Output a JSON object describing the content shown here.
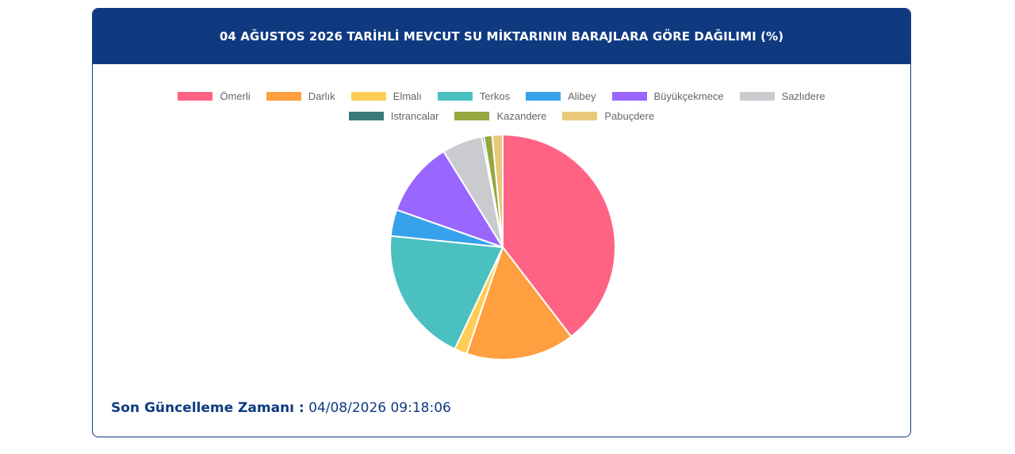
{
  "header": {
    "title": "04 AĞUSTOS 2026 TARİHLİ MEVCUT SU MİKTARININ BARAJLARA GÖRE DAĞILIMI (%)"
  },
  "footer": {
    "label": "Son Güncelleme Zamanı :",
    "value": "04/08/2026 09:18:06"
  },
  "chart_data": {
    "type": "pie",
    "title": "04 AĞUSTOS 2026 TARİHLİ MEVCUT SU MİKTARININ BARAJLARA GÖRE DAĞILIMI (%)",
    "legend_position": "top",
    "categories": [
      "Ömerli",
      "Darlık",
      "Elmalı",
      "Terkos",
      "Alibey",
      "Büyükçekmece",
      "Sazlıdere",
      "Istrancalar",
      "Kazandere",
      "Pabuçdere"
    ],
    "values": [
      39.6,
      15.6,
      1.8,
      19.6,
      3.8,
      10.8,
      5.8,
      0.3,
      1.2,
      1.5
    ],
    "colors": [
      "#ff6384",
      "#ff9f40",
      "#ffcd56",
      "#4bc0c0",
      "#36a2eb",
      "#9966ff",
      "#c9cbcf",
      "#3a7a7a",
      "#97a640",
      "#e8c97a"
    ]
  }
}
